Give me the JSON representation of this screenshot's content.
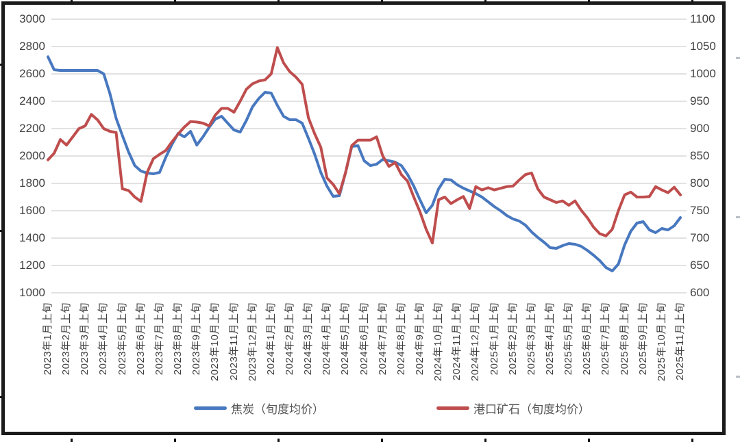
{
  "chart_data": {
    "type": "line",
    "title": "",
    "grid": true,
    "legend_position": "bottom",
    "points_per_month": 3,
    "period_note": "每月三旬（上旬/中旬/下旬），横轴仅标注每月上旬",
    "x_labels": [
      "2023年1月上旬",
      "2023年2月上旬",
      "2023年3月上旬",
      "2023年4月上旬",
      "2023年5月上旬",
      "2023年6月上旬",
      "2023年7月上旬",
      "2023年8月上旬",
      "2023年9月上旬",
      "2023年10月上旬",
      "2023年11月上旬",
      "2023年12月上旬",
      "2024年1月上旬",
      "2024年2月上旬",
      "2024年3月上旬",
      "2024年4月上旬",
      "2024年5月上旬",
      "2024年6月上旬",
      "2024年7月上旬",
      "2024年8月上旬",
      "2024年9月上旬",
      "2024年10月上旬",
      "2024年11月上旬",
      "2024年12月上旬",
      "2025年1月上旬",
      "2025年2月上旬",
      "2025年3月上旬",
      "2025年4月上旬",
      "2025年5月上旬",
      "2025年6月上旬",
      "2025年7月上旬",
      "2025年8月上旬",
      "2025年9月上旬",
      "2025年10月上旬",
      "2025年11月上旬"
    ],
    "y_left": {
      "min": 1000,
      "max": 3000,
      "step": 200,
      "ticks": [
        3000,
        2800,
        2600,
        2400,
        2200,
        2000,
        1800,
        1600,
        1400,
        1200,
        1000
      ]
    },
    "y_right": {
      "min": 600,
      "max": 1100,
      "step": 50,
      "ticks": [
        1100,
        1050,
        1000,
        950,
        900,
        850,
        800,
        750,
        700,
        650,
        600
      ]
    },
    "series": [
      {
        "name": "焦炭（旬度均价）",
        "axis": "left",
        "color": "#4878BF",
        "values": [
          2725,
          2630,
          2625,
          2625,
          2625,
          2625,
          2625,
          2625,
          2625,
          2600,
          2455,
          2275,
          2150,
          2030,
          1930,
          1890,
          1875,
          1870,
          1880,
          1990,
          2085,
          2165,
          2140,
          2180,
          2080,
          2140,
          2210,
          2270,
          2290,
          2240,
          2190,
          2175,
          2260,
          2360,
          2420,
          2465,
          2460,
          2370,
          2290,
          2265,
          2265,
          2240,
          2130,
          2015,
          1880,
          1780,
          1705,
          1710,
          1880,
          2070,
          2075,
          1965,
          1930,
          1940,
          1975,
          1965,
          1955,
          1930,
          1865,
          1780,
          1680,
          1585,
          1640,
          1760,
          1830,
          1825,
          1790,
          1765,
          1745,
          1725,
          1700,
          1665,
          1630,
          1600,
          1565,
          1540,
          1525,
          1495,
          1445,
          1405,
          1370,
          1330,
          1325,
          1345,
          1360,
          1355,
          1340,
          1310,
          1275,
          1235,
          1185,
          1160,
          1210,
          1350,
          1450,
          1510,
          1520,
          1460,
          1440,
          1470,
          1460,
          1490,
          1550
        ]
      },
      {
        "name": "港口矿石（旬度均价）",
        "axis": "right",
        "color": "#BF4D4D",
        "values": [
          843,
          855,
          880,
          870,
          885,
          900,
          905,
          926,
          916,
          900,
          895,
          893,
          790,
          787,
          775,
          767,
          820,
          845,
          853,
          860,
          876,
          890,
          903,
          913,
          912,
          910,
          905,
          925,
          937,
          937,
          930,
          950,
          972,
          982,
          987,
          989,
          1000,
          1048,
          1020,
          1004,
          994,
          981,
          920,
          891,
          866,
          810,
          798,
          781,
          820,
          869,
          879,
          879,
          879,
          885,
          850,
          831,
          838,
          816,
          804,
          775,
          748,
          716,
          691,
          770,
          775,
          763,
          770,
          776,
          754,
          794,
          788,
          792,
          788,
          791,
          794,
          795,
          806,
          816,
          819,
          790,
          775,
          770,
          765,
          768,
          760,
          768,
          751,
          737,
          720,
          708,
          704,
          716,
          750,
          779,
          784,
          775,
          775,
          776,
          794,
          788,
          783,
          793,
          779
        ]
      }
    ]
  },
  "legend": {
    "items": [
      {
        "label": "焦炭（旬度均价）"
      },
      {
        "label": "港口矿石（旬度均价）"
      }
    ]
  },
  "style": {
    "gridline_color": "#d9d9d9",
    "axis_text_color": "#404040",
    "frame_color": "#1b1b1b"
  }
}
